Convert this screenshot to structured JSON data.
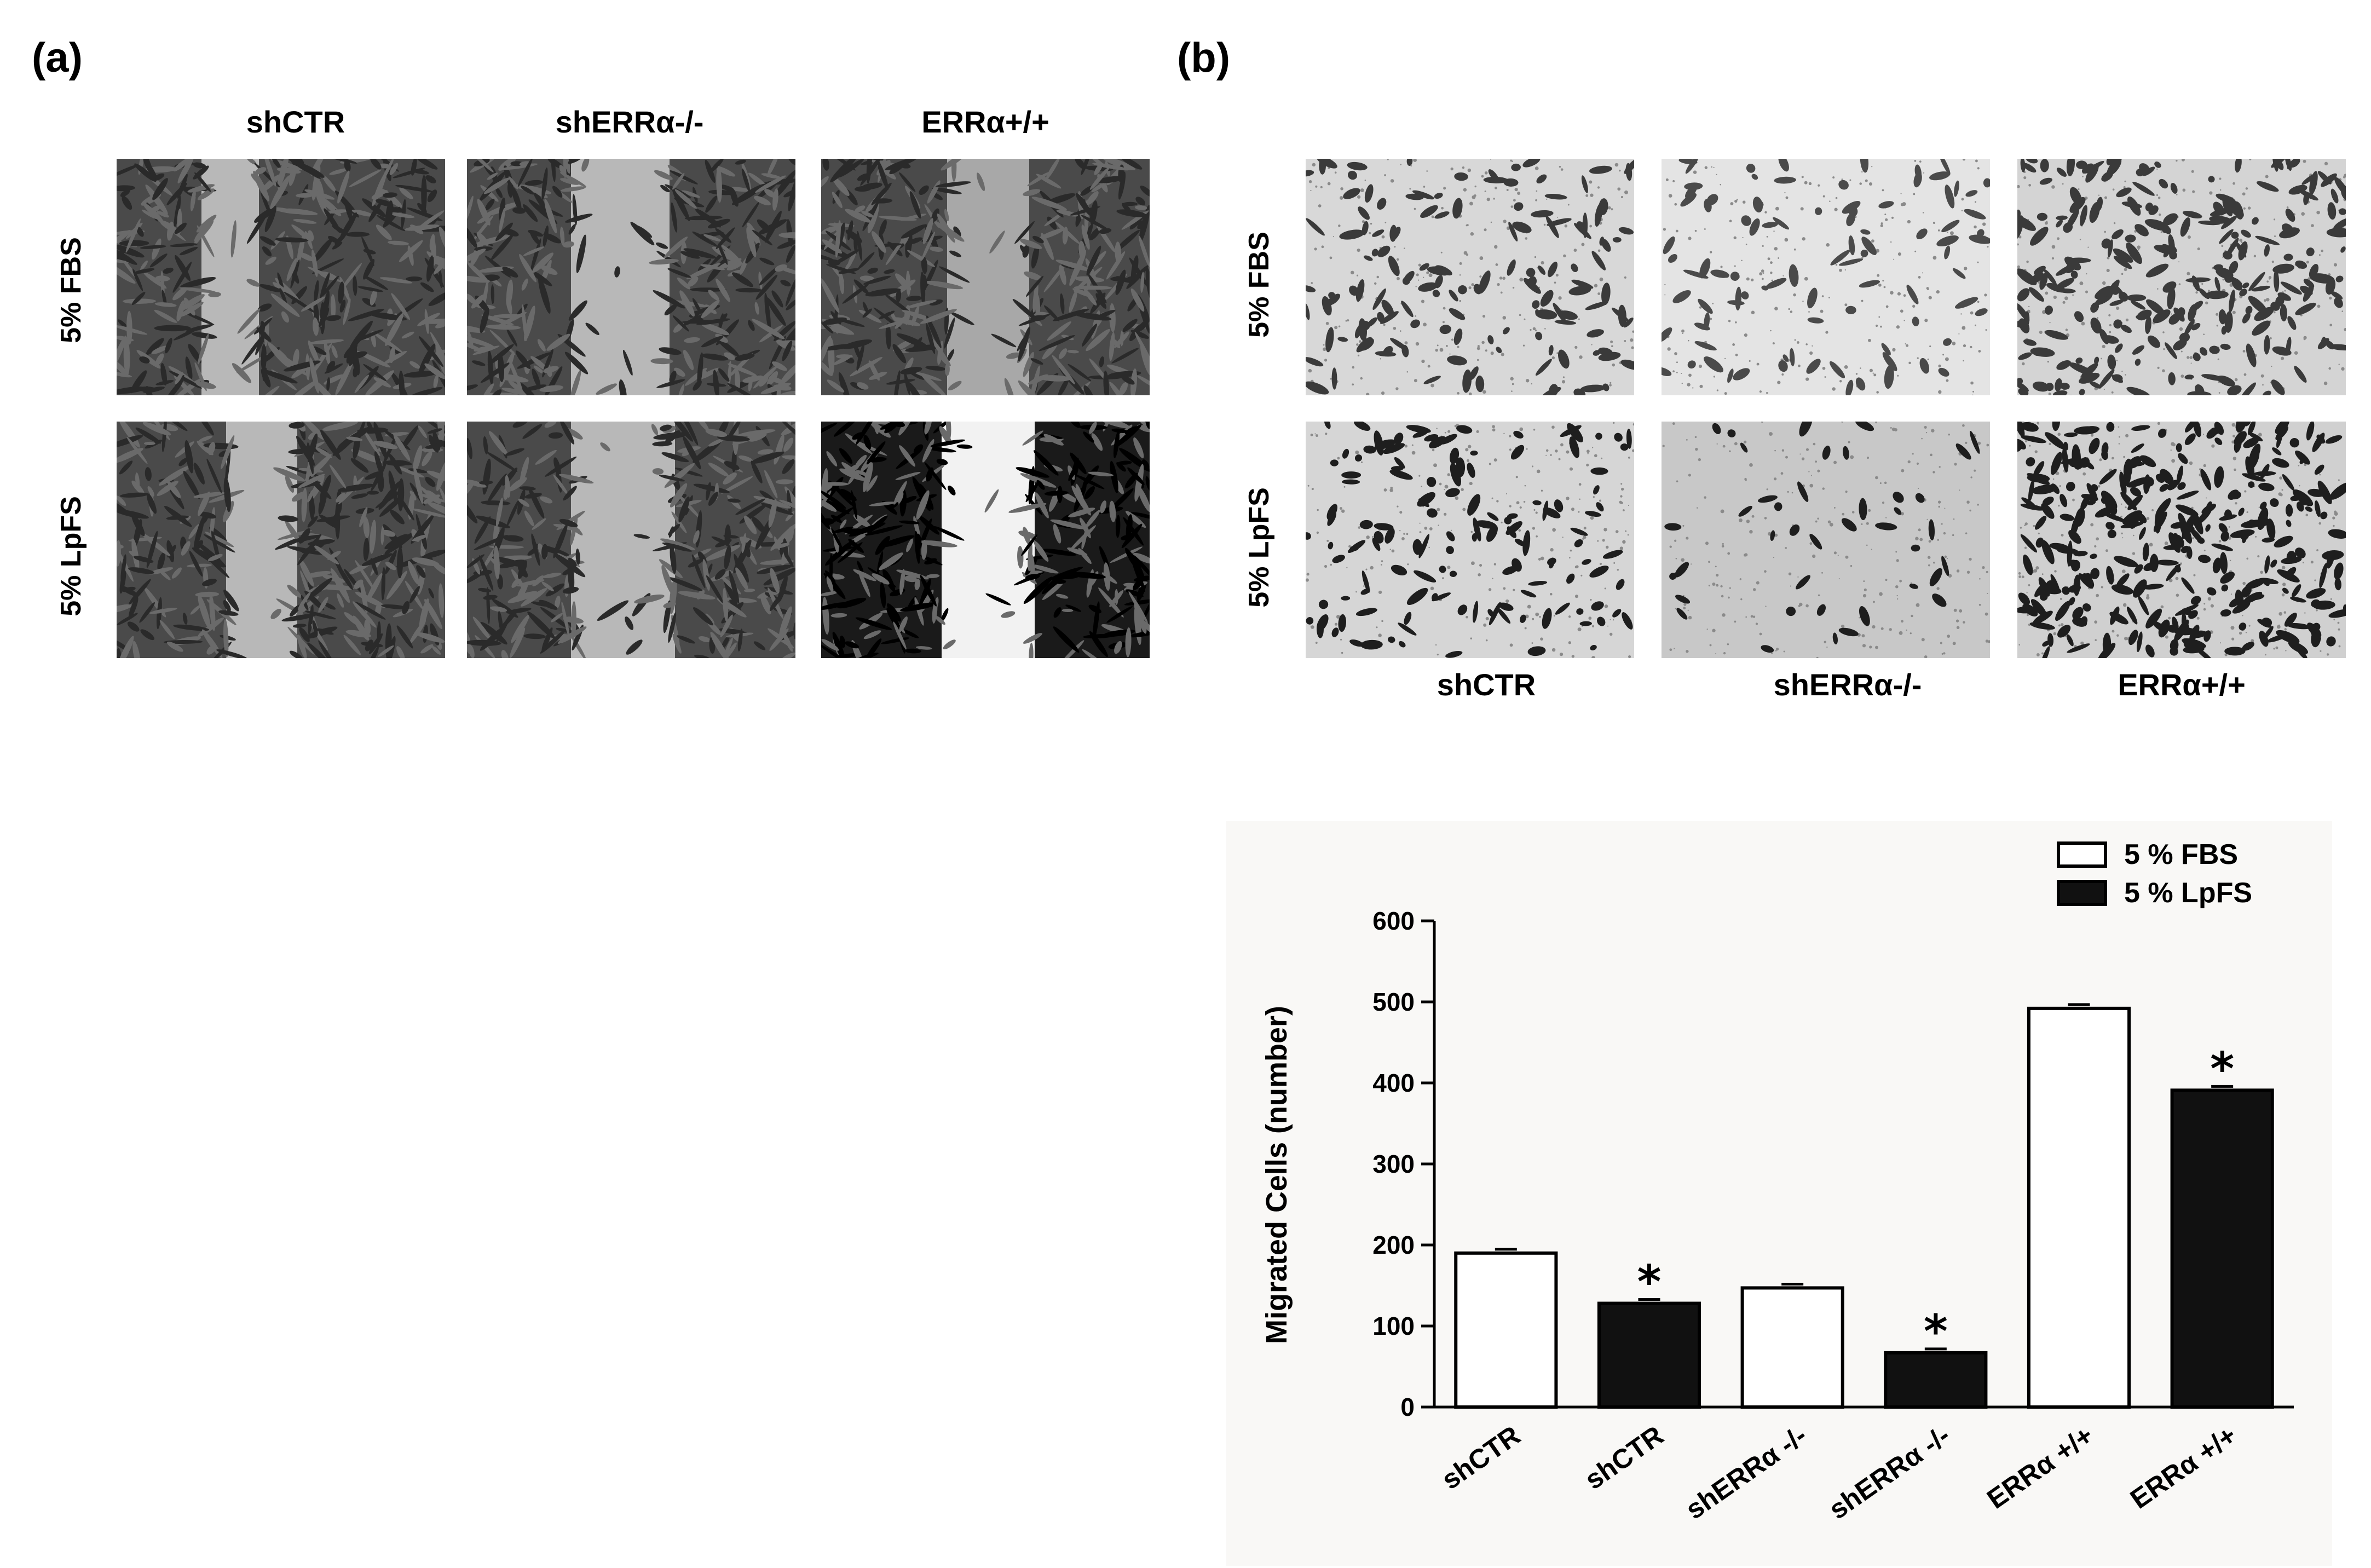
{
  "panel_a": {
    "label": "(a)",
    "columns": [
      "shCTR",
      "shERRα-/-",
      "ERRα+/+"
    ],
    "rows": [
      "5% FBS",
      "5% LpFS"
    ]
  },
  "panel_b": {
    "label": "(b)",
    "columns": [
      "shCTR",
      "shERRα-/-",
      "ERRα+/+"
    ],
    "rows": [
      "5% FBS",
      "5% LpFS"
    ]
  },
  "colors": {
    "fbs_bar": "#ffffff",
    "lpfs_bar": "#111111",
    "chart_bg": "#f9f8f6"
  },
  "chart_data": {
    "type": "bar",
    "title": "",
    "ylabel": "Migrated Cells (number)",
    "xlabel": "",
    "ylim": [
      0,
      600
    ],
    "yticks": [
      0,
      100,
      200,
      300,
      400,
      500,
      600
    ],
    "legend_position": "top-right",
    "legend": [
      {
        "label": "5 %  FBS",
        "fill": "#ffffff"
      },
      {
        "label": "5 %  LpFS",
        "fill": "#111111"
      }
    ],
    "bars": [
      {
        "category": "shCTR",
        "series": "5 %  FBS",
        "value": 190,
        "significant": false
      },
      {
        "category": "shCTR",
        "series": "5 %  LpFS",
        "value": 128,
        "significant": true
      },
      {
        "category": "shERRα -/-",
        "series": "5 %  FBS",
        "value": 147,
        "significant": false
      },
      {
        "category": "shERRα -/-",
        "series": "5 %  LpFS",
        "value": 67,
        "significant": true
      },
      {
        "category": "ERRα +/+",
        "series": "5 %  FBS",
        "value": 492,
        "significant": false
      },
      {
        "category": "ERRα +/+",
        "series": "5 %  LpFS",
        "value": 391,
        "significant": true
      }
    ],
    "significance_marker": "*"
  }
}
